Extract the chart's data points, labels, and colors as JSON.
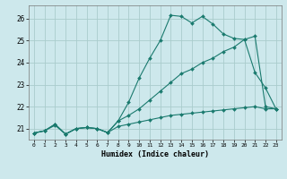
{
  "xlabel": "Humidex (Indice chaleur)",
  "ylabel": "",
  "background_color": "#cde8ec",
  "grid_color": "#aacccc",
  "line_color": "#1a7a6e",
  "xlim": [
    -0.5,
    23.5
  ],
  "ylim": [
    20.5,
    26.6
  ],
  "yticks": [
    21,
    22,
    23,
    24,
    25,
    26
  ],
  "xticks": [
    0,
    1,
    2,
    3,
    4,
    5,
    6,
    7,
    8,
    9,
    10,
    11,
    12,
    13,
    14,
    15,
    16,
    17,
    18,
    19,
    20,
    21,
    22,
    23
  ],
  "series1_x": [
    0,
    1,
    2,
    3,
    4,
    5,
    6,
    7,
    8,
    9,
    10,
    11,
    12,
    13,
    14,
    15,
    16,
    17,
    18,
    19,
    20,
    21,
    22,
    23
  ],
  "series1_y": [
    20.8,
    20.9,
    21.2,
    20.75,
    21.0,
    21.05,
    21.0,
    20.82,
    21.35,
    22.2,
    23.3,
    24.2,
    25.0,
    26.15,
    26.1,
    25.8,
    26.1,
    25.75,
    25.3,
    25.1,
    25.05,
    23.55,
    22.85,
    21.9
  ],
  "series2_x": [
    0,
    1,
    2,
    3,
    4,
    5,
    6,
    7,
    8,
    9,
    10,
    11,
    12,
    13,
    14,
    15,
    16,
    17,
    18,
    19,
    20,
    21,
    22,
    23
  ],
  "series2_y": [
    20.8,
    20.9,
    21.2,
    20.75,
    21.0,
    21.05,
    21.0,
    20.82,
    21.35,
    21.6,
    21.9,
    22.3,
    22.7,
    23.1,
    23.5,
    23.7,
    24.0,
    24.2,
    24.5,
    24.7,
    25.05,
    25.2,
    22.0,
    21.9
  ],
  "series3_x": [
    0,
    1,
    2,
    3,
    4,
    5,
    6,
    7,
    8,
    9,
    10,
    11,
    12,
    13,
    14,
    15,
    16,
    17,
    18,
    19,
    20,
    21,
    22,
    23
  ],
  "series3_y": [
    20.8,
    20.9,
    21.15,
    20.75,
    21.0,
    21.05,
    21.0,
    20.82,
    21.1,
    21.2,
    21.3,
    21.4,
    21.5,
    21.6,
    21.65,
    21.7,
    21.75,
    21.8,
    21.85,
    21.9,
    21.95,
    22.0,
    21.9,
    21.9
  ]
}
